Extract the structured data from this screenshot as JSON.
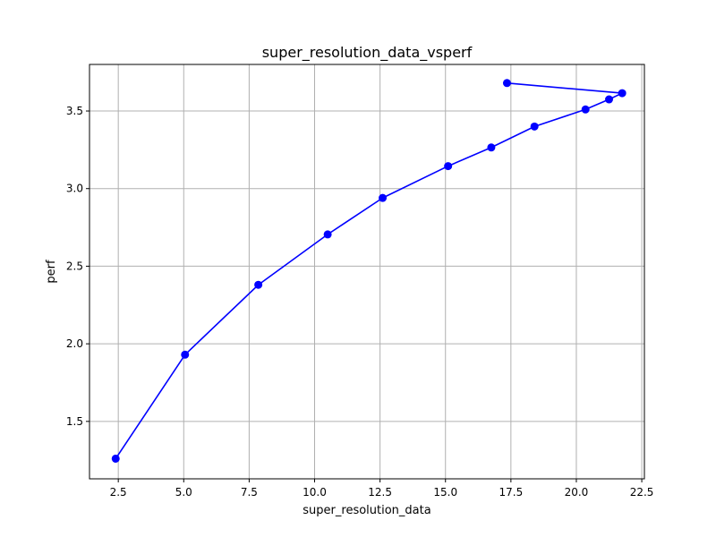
{
  "chart_data": {
    "type": "line",
    "title": "super_resolution_data_vsperf",
    "xlabel": "super_resolution_data",
    "ylabel": "perf",
    "xlim": [
      1.4,
      22.6
    ],
    "ylim": [
      1.13,
      3.8
    ],
    "xticks": [
      "2.5",
      "5.0",
      "7.5",
      "10.0",
      "12.5",
      "15.0",
      "17.5",
      "20.0",
      "22.5"
    ],
    "xtick_values": [
      2.5,
      5.0,
      7.5,
      10.0,
      12.5,
      15.0,
      17.5,
      20.0,
      22.5
    ],
    "yticks": [
      "1.5",
      "2.0",
      "2.5",
      "3.0",
      "3.5"
    ],
    "ytick_values": [
      1.5,
      2.0,
      2.5,
      3.0,
      3.5
    ],
    "grid": true,
    "series": [
      {
        "color": "#0000ff",
        "marker": "circle",
        "x": [
          2.4,
          5.05,
          7.85,
          10.5,
          12.6,
          15.1,
          16.75,
          18.4,
          20.35,
          21.25,
          21.75,
          17.35
        ],
        "y": [
          1.26,
          1.93,
          2.38,
          2.705,
          2.94,
          3.145,
          3.265,
          3.4,
          3.51,
          3.575,
          3.615,
          3.68
        ]
      }
    ]
  }
}
